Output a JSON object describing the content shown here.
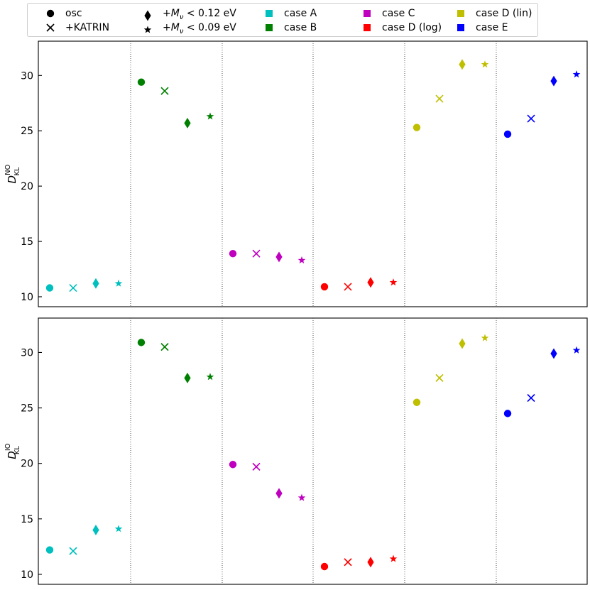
{
  "legend": {
    "markers": [
      {
        "symbol": "circle",
        "label": "osc"
      },
      {
        "symbol": "cross",
        "label": "+KATRIN"
      },
      {
        "symbol": "diamond",
        "label_prefix": "+",
        "label_var": "M",
        "label_sub": "ν",
        "label_suffix": " < 0.12 eV"
      },
      {
        "symbol": "star",
        "label_prefix": "+",
        "label_var": "M",
        "label_sub": "ν",
        "label_suffix": " < 0.09 eV"
      }
    ],
    "cases": [
      {
        "name": "case A",
        "color": "#00bfbf"
      },
      {
        "name": "case B",
        "color": "#008000"
      },
      {
        "name": "case C",
        "color": "#bf00bf"
      },
      {
        "name": "case D (log)",
        "color": "#ff0000"
      },
      {
        "name": "case D (lin)",
        "color": "#bfbf00"
      },
      {
        "name": "case E",
        "color": "#0000ff"
      }
    ]
  },
  "chart_data": [
    {
      "type": "scatter",
      "panel": "top",
      "ylabel": {
        "main": "D",
        "sub": "KL",
        "sup": "NO"
      },
      "ylim": [
        9.1,
        33.1
      ],
      "yticks": [
        10,
        15,
        20,
        25,
        30
      ],
      "xlabel": "",
      "series": [
        {
          "case": "case A",
          "values": {
            "circle": 10.8,
            "cross": 10.8,
            "diamond": 11.2,
            "star": 11.2
          }
        },
        {
          "case": "case B",
          "values": {
            "circle": 29.4,
            "cross": 28.6,
            "diamond": 25.7,
            "star": 26.3
          }
        },
        {
          "case": "case C",
          "values": {
            "circle": 13.9,
            "cross": 13.9,
            "diamond": 13.6,
            "star": 13.3
          }
        },
        {
          "case": "case D (log)",
          "values": {
            "circle": 10.9,
            "cross": 10.9,
            "diamond": 11.3,
            "star": 11.3
          }
        },
        {
          "case": "case D (lin)",
          "values": {
            "circle": 25.3,
            "cross": 27.9,
            "diamond": 31.0,
            "star": 31.0
          }
        },
        {
          "case": "case E",
          "values": {
            "circle": 24.7,
            "cross": 26.1,
            "diamond": 29.5,
            "star": 30.1
          }
        }
      ]
    },
    {
      "type": "scatter",
      "panel": "bottom",
      "ylabel": {
        "main": "D",
        "sub": "KL",
        "sup": "IO"
      },
      "ylim": [
        9.1,
        33.1
      ],
      "yticks": [
        10,
        15,
        20,
        25,
        30
      ],
      "xlabel": "",
      "series": [
        {
          "case": "case A",
          "values": {
            "circle": 12.2,
            "cross": 12.1,
            "diamond": 14.0,
            "star": 14.1
          }
        },
        {
          "case": "case B",
          "values": {
            "circle": 30.9,
            "cross": 30.5,
            "diamond": 27.7,
            "star": 27.8
          }
        },
        {
          "case": "case C",
          "values": {
            "circle": 19.9,
            "cross": 19.7,
            "diamond": 17.3,
            "star": 16.9
          }
        },
        {
          "case": "case D (log)",
          "values": {
            "circle": 10.7,
            "cross": 11.1,
            "diamond": 11.1,
            "star": 11.4
          }
        },
        {
          "case": "case D (lin)",
          "values": {
            "circle": 25.5,
            "cross": 27.7,
            "diamond": 30.8,
            "star": 31.3
          }
        },
        {
          "case": "case E",
          "values": {
            "circle": 24.5,
            "cross": 25.9,
            "diamond": 29.9,
            "star": 30.2
          }
        }
      ]
    }
  ]
}
